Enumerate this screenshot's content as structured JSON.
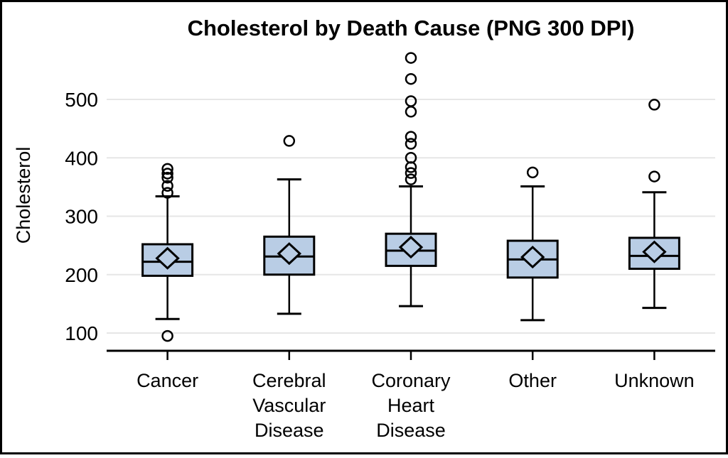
{
  "chart_data": {
    "type": "box",
    "title": "Cholesterol by Death Cause (PNG 300 DPI)",
    "xlabel": "",
    "ylabel": "Cholesterol",
    "y_axis": {
      "ticks": [
        100,
        200,
        300,
        400,
        500
      ],
      "range_shown": [
        75,
        590
      ]
    },
    "grid": "horizontal",
    "legend": "none",
    "categories": [
      "Cancer",
      "Cerebral Vascular Disease",
      "Coronary Heart Disease",
      "Other",
      "Unknown"
    ],
    "boxes": [
      {
        "category": "Cancer",
        "q1": 198,
        "median": 222,
        "q3": 252,
        "mean": 228,
        "whisker_low": 124,
        "whisker_high": 334,
        "outliers": [
          381,
          373,
          366,
          352,
          340,
          95
        ]
      },
      {
        "category": "Cerebral Vascular Disease",
        "q1": 200,
        "median": 231,
        "q3": 265,
        "mean": 236,
        "whisker_low": 133,
        "whisker_high": 363,
        "outliers": [
          429
        ]
      },
      {
        "category": "Coronary Heart Disease",
        "q1": 215,
        "median": 241,
        "q3": 270,
        "mean": 247,
        "whisker_low": 146,
        "whisker_high": 351,
        "outliers": [
          571,
          535,
          497,
          479,
          436,
          424,
          400,
          384,
          374,
          363
        ]
      },
      {
        "category": "Other",
        "q1": 195,
        "median": 226,
        "q3": 258,
        "mean": 230,
        "whisker_low": 122,
        "whisker_high": 351,
        "outliers": [
          375
        ]
      },
      {
        "category": "Unknown",
        "q1": 210,
        "median": 232,
        "q3": 263,
        "mean": 239,
        "whisker_low": 143,
        "whisker_high": 341,
        "outliers": [
          491,
          368
        ]
      }
    ],
    "colors": {
      "box_fill": "#b9cde5",
      "line": "#000000",
      "gridline": "#e6e6e6",
      "background": "#ffffff",
      "border": "#000000"
    }
  }
}
